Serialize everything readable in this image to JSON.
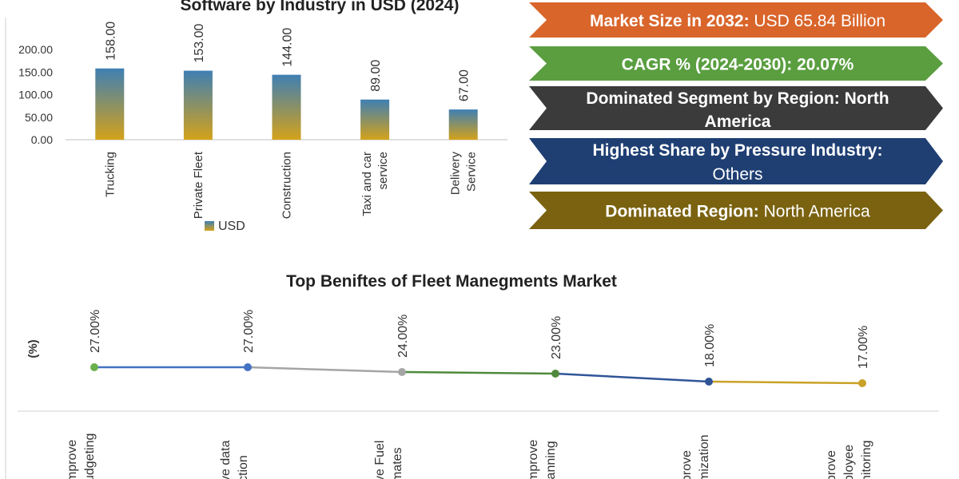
{
  "chart_data": [
    {
      "type": "bar",
      "title": "Software by Industry in USD (2024)",
      "categories": [
        [
          "Trucking"
        ],
        [
          "Private Fleet"
        ],
        [
          "Construction"
        ],
        [
          "Taxi and car",
          "service"
        ],
        [
          "Delivery",
          "Service"
        ]
      ],
      "values": [
        158.0,
        153.0,
        144.0,
        89.0,
        67.0
      ],
      "value_labels": [
        "158.00",
        "153.00",
        "144.00",
        "89.00",
        "67.00"
      ],
      "yticks": [
        "0.00",
        "50.00",
        "100.00",
        "150.00",
        "200.00"
      ],
      "ylim": [
        0,
        200
      ],
      "legend": "USD",
      "colors": {
        "bar_top": "#3f7fb3",
        "bar_bottom": "#d4a21a"
      }
    },
    {
      "type": "line",
      "title": "Top Beniftes of Fleet Manegments Market",
      "ylabel": "(%)",
      "categories": [
        [
          "mprove",
          "udgeting"
        ],
        [
          "ve data",
          "ction"
        ],
        [
          "ve Fuel",
          "mates"
        ],
        [
          "mprove",
          "lanning"
        ],
        [
          "prove",
          "mization"
        ],
        [
          "prove",
          "ployee",
          "nitoring"
        ]
      ],
      "values": [
        27.0,
        27.0,
        24.0,
        23.0,
        18.0,
        17.0
      ],
      "value_labels": [
        "27.00%",
        "27.00%",
        "24.00%",
        "23.00%",
        "18.00%",
        "17.00%"
      ],
      "point_colors": [
        "#6ab04c",
        "#4472c4",
        "#a5a5a5",
        "#4f8a3c",
        "#2f5597",
        "#c9a227"
      ],
      "segment_colors": [
        "#4472c4",
        "#a5a5a5",
        "#4f8a3c",
        "#2f5597",
        "#c9a227"
      ]
    }
  ],
  "banners": [
    {
      "bold": "Market Size in 2032:",
      "rest": " USD 65.84 Billion",
      "color": "#d9652b"
    },
    {
      "bold": "CAGR % (2024-2030): 20.07%",
      "rest": "",
      "color": "#5a9e40"
    },
    {
      "bold": "Dominated Segment by Region: North America",
      "rest": "",
      "color": "#3b3b3b"
    },
    {
      "bold": "Highest Share by Pressure Industry:",
      "rest": "Others",
      "color": "#1f3f73"
    },
    {
      "bold": "Dominated Region:",
      "rest": " North America",
      "color": "#7a6210"
    }
  ]
}
